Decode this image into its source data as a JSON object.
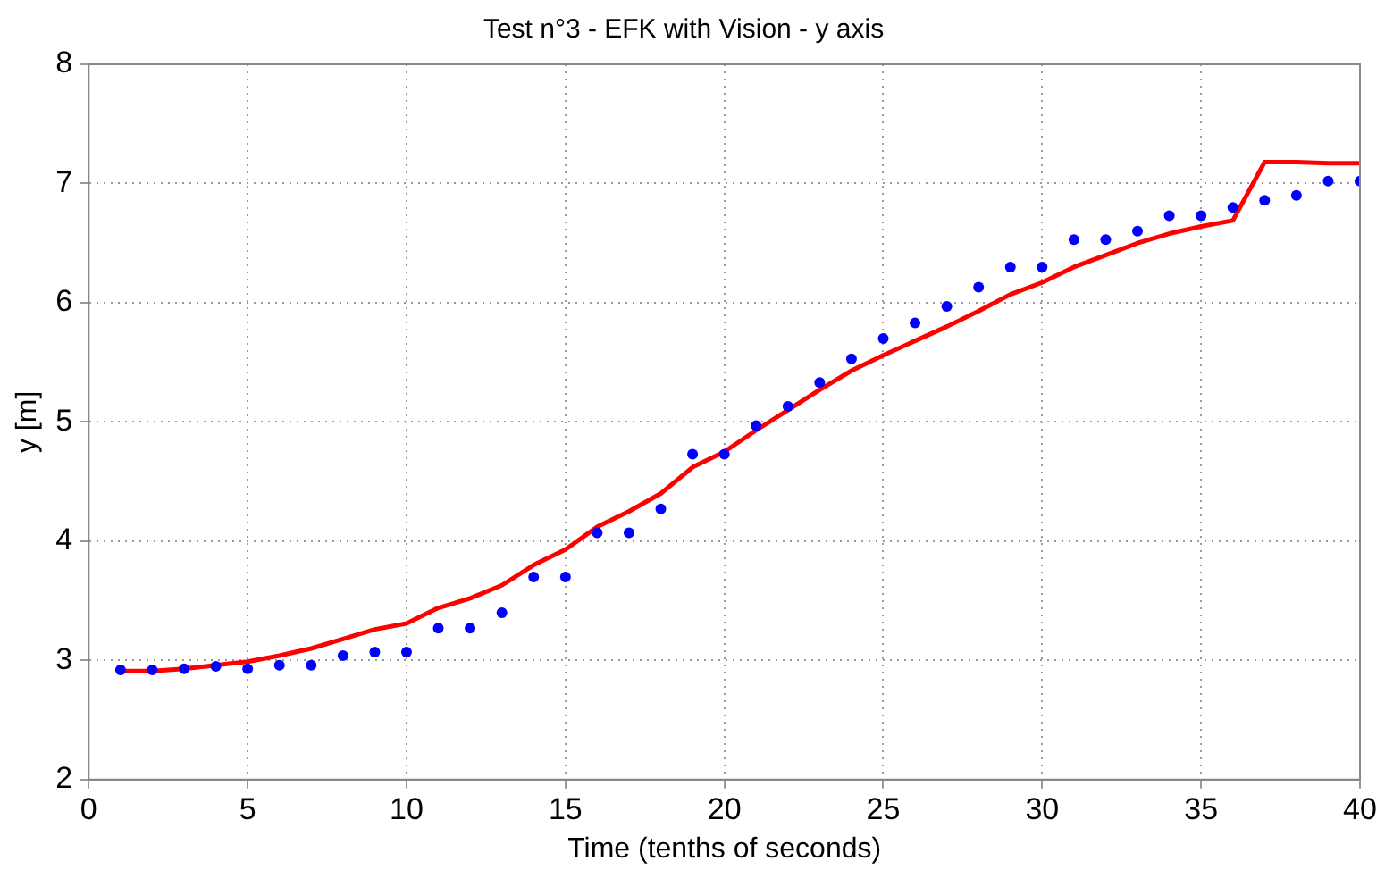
{
  "chart_data": {
    "type": "line",
    "title": "Test n°3 - EFK with Vision - y axis",
    "xlabel": "Time (tenths of seconds)",
    "ylabel": "y [m]",
    "x": [
      1,
      2,
      3,
      4,
      5,
      6,
      7,
      8,
      9,
      10,
      11,
      12,
      13,
      14,
      15,
      16,
      17,
      18,
      19,
      20,
      21,
      22,
      23,
      24,
      25,
      26,
      27,
      28,
      29,
      30,
      31,
      32,
      33,
      34,
      35,
      36,
      37,
      38,
      39,
      40
    ],
    "series": [
      {
        "color": "#ff0000",
        "marker": "none",
        "line_style": "solid",
        "values": [
          2.91,
          2.91,
          2.93,
          2.96,
          2.99,
          3.04,
          3.1,
          3.18,
          3.26,
          3.31,
          3.44,
          3.52,
          3.63,
          3.8,
          3.93,
          4.12,
          4.25,
          4.4,
          4.62,
          4.75,
          4.93,
          5.1,
          5.27,
          5.43,
          5.56,
          5.68,
          5.8,
          5.93,
          6.07,
          6.17,
          6.3,
          6.4,
          6.5,
          6.58,
          6.64,
          6.69,
          7.18,
          7.18,
          7.17,
          7.17
        ]
      },
      {
        "type": "scatter",
        "color": "#0000ff",
        "marker": "circle",
        "values": [
          2.92,
          2.92,
          2.93,
          2.95,
          2.93,
          2.96,
          2.96,
          3.04,
          3.07,
          3.07,
          3.27,
          3.27,
          3.4,
          3.7,
          3.7,
          4.07,
          4.07,
          4.27,
          4.73,
          4.73,
          4.97,
          5.13,
          5.33,
          5.53,
          5.7,
          5.83,
          5.97,
          6.13,
          6.3,
          6.3,
          6.53,
          6.53,
          6.6,
          6.73,
          6.73,
          6.8,
          6.86,
          6.9,
          7.02,
          7.02
        ]
      }
    ],
    "xlim": [
      0,
      40
    ],
    "xticks": [
      0,
      5,
      10,
      15,
      20,
      25,
      30,
      35,
      40
    ],
    "ylim": [
      2,
      8
    ],
    "yticks": [
      2,
      3,
      4,
      5,
      6,
      7,
      8
    ],
    "grid": true,
    "legend": false
  }
}
